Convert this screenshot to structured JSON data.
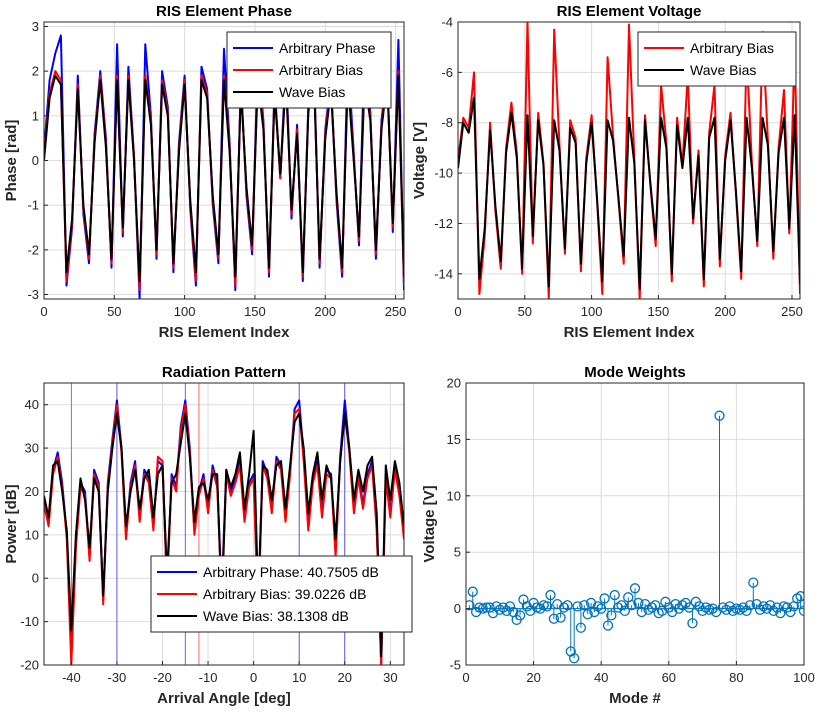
{
  "chart_data": [
    {
      "id": "phase",
      "type": "line",
      "title": "RIS Element Phase",
      "xlabel": "RIS Element Index",
      "ylabel": "Phase [rad]",
      "xlim": [
        0,
        256
      ],
      "ylim": [
        -3.1,
        3.1
      ],
      "xticks": [
        0,
        50,
        100,
        150,
        200,
        250
      ],
      "yticks": [
        -3,
        -2,
        -1,
        0,
        1,
        2,
        3
      ],
      "grid": true,
      "legend_position": "top-right",
      "x": [
        0,
        4,
        8,
        12,
        16,
        20,
        24,
        28,
        32,
        36,
        40,
        44,
        48,
        52,
        56,
        60,
        64,
        68,
        72,
        76,
        80,
        84,
        88,
        92,
        96,
        100,
        104,
        108,
        112,
        116,
        120,
        124,
        128,
        132,
        136,
        140,
        144,
        148,
        152,
        156,
        160,
        164,
        168,
        172,
        176,
        180,
        184,
        188,
        192,
        196,
        200,
        204,
        208,
        212,
        216,
        220,
        224,
        228,
        232,
        236,
        240,
        244,
        248,
        252,
        256
      ],
      "series": [
        {
          "name": "Arbitrary Phase",
          "color": "#0000ff",
          "values": [
            0.2,
            1.8,
            2.4,
            2.8,
            -2.8,
            -1.5,
            1.9,
            -1.2,
            -2.3,
            0.6,
            2.0,
            0.5,
            -2.4,
            2.6,
            -1.7,
            2.1,
            0.1,
            -3.1,
            2.6,
            1.0,
            -2.2,
            2.0,
            1.2,
            -2.5,
            0.4,
            1.9,
            -1.1,
            -2.8,
            2.1,
            1.6,
            -1.0,
            -2.3,
            2.5,
            0.4,
            -2.9,
            1.8,
            -0.8,
            -2.1,
            2.3,
            0.9,
            -2.6,
            1.7,
            -0.4,
            2.2,
            -1.3,
            0.8,
            -2.7,
            1.3,
            2.1,
            -2.4,
            0.7,
            1.8,
            -0.9,
            -2.6,
            2.4,
            0.3,
            -1.9,
            2.6,
            1.1,
            -2.2,
            0.9,
            2.0,
            -1.6,
            2.7,
            -2.9
          ]
        },
        {
          "name": "Arbitrary Bias",
          "color": "#ff0000",
          "values": [
            0.1,
            1.5,
            2.0,
            1.8,
            -2.7,
            -1.4,
            1.7,
            -1.1,
            -2.2,
            0.5,
            1.9,
            0.4,
            -2.3,
            1.9,
            -1.6,
            1.9,
            0.1,
            -2.9,
            1.9,
            0.9,
            -2.1,
            1.8,
            1.1,
            -2.4,
            0.3,
            1.8,
            -1.0,
            -2.7,
            1.9,
            1.5,
            -0.9,
            -2.2,
            1.9,
            0.3,
            -2.8,
            1.7,
            -0.7,
            -2.0,
            1.9,
            0.8,
            -2.5,
            1.6,
            -0.4,
            1.9,
            -1.2,
            0.7,
            -2.6,
            1.2,
            1.9,
            -2.3,
            0.6,
            1.7,
            -0.8,
            -2.5,
            1.9,
            0.2,
            -1.8,
            1.9,
            1.0,
            -2.1,
            0.8,
            1.9,
            -1.5,
            2.0,
            -2.8
          ]
        },
        {
          "name": "Wave Bias",
          "color": "#000000",
          "values": [
            0.0,
            1.4,
            1.9,
            1.7,
            -2.5,
            -1.3,
            1.6,
            -1.0,
            -2.1,
            0.4,
            1.8,
            0.3,
            -2.2,
            1.8,
            -1.5,
            1.8,
            0.0,
            -2.7,
            1.8,
            0.8,
            -2.0,
            1.7,
            1.0,
            -2.3,
            0.2,
            1.7,
            -0.9,
            -2.5,
            1.8,
            1.4,
            -0.8,
            -2.1,
            1.8,
            0.2,
            -2.6,
            1.6,
            -0.6,
            -1.9,
            1.8,
            0.7,
            -2.4,
            1.5,
            -0.3,
            1.8,
            -1.1,
            0.6,
            -2.5,
            1.1,
            1.8,
            -2.2,
            0.5,
            1.6,
            -0.7,
            -2.4,
            1.8,
            0.1,
            -1.7,
            1.8,
            0.9,
            -2.0,
            0.7,
            1.8,
            -1.4,
            1.9,
            -2.6
          ]
        }
      ]
    },
    {
      "id": "voltage",
      "type": "line",
      "title": "RIS Element Voltage",
      "xlabel": "RIS Element Index",
      "ylabel": "Voltage [V]",
      "xlim": [
        0,
        256
      ],
      "ylim": [
        -15,
        -4
      ],
      "xticks": [
        0,
        50,
        100,
        150,
        200,
        250
      ],
      "yticks": [
        -14,
        -12,
        -10,
        -8,
        -6,
        -4
      ],
      "grid": true,
      "legend_position": "top-right",
      "x": [
        0,
        4,
        8,
        12,
        16,
        20,
        24,
        28,
        32,
        36,
        40,
        44,
        48,
        52,
        56,
        60,
        64,
        68,
        72,
        76,
        80,
        84,
        88,
        92,
        96,
        100,
        104,
        108,
        112,
        116,
        120,
        124,
        128,
        132,
        136,
        140,
        144,
        148,
        152,
        156,
        160,
        164,
        168,
        172,
        176,
        180,
        184,
        188,
        192,
        196,
        200,
        204,
        208,
        212,
        216,
        220,
        224,
        228,
        232,
        236,
        240,
        244,
        248,
        252,
        256
      ],
      "series": [
        {
          "name": "Arbitrary Bias",
          "color": "#ff0000",
          "values": [
            -9.5,
            -7.8,
            -8.2,
            -6.0,
            -14.8,
            -12.5,
            -8.0,
            -11.5,
            -13.8,
            -9.0,
            -7.2,
            -9.2,
            -14.0,
            -4.0,
            -12.8,
            -7.6,
            -9.6,
            -15.0,
            -4.3,
            -8.9,
            -13.2,
            -7.9,
            -8.6,
            -13.9,
            -9.4,
            -7.7,
            -11.0,
            -14.8,
            -5.4,
            -8.5,
            -11.0,
            -13.6,
            -4.1,
            -9.4,
            -15.0,
            -7.7,
            -10.5,
            -12.9,
            -6.5,
            -8.8,
            -14.3,
            -7.8,
            -9.7,
            -6.1,
            -12.0,
            -9.1,
            -14.5,
            -8.4,
            -6.5,
            -13.7,
            -9.3,
            -7.6,
            -10.8,
            -14.2,
            -5.2,
            -9.6,
            -12.9,
            -4.4,
            -8.7,
            -13.4,
            -9.0,
            -6.7,
            -12.4,
            -5.1,
            -14.8
          ]
        },
        {
          "name": "Wave Bias",
          "color": "#000000",
          "values": [
            -9.8,
            -8.0,
            -8.4,
            -7.0,
            -14.2,
            -12.2,
            -8.3,
            -11.3,
            -13.5,
            -9.2,
            -7.6,
            -9.4,
            -13.8,
            -7.7,
            -12.5,
            -7.9,
            -9.7,
            -14.5,
            -7.9,
            -9.1,
            -13.0,
            -8.2,
            -8.8,
            -13.6,
            -9.6,
            -8.0,
            -10.9,
            -14.3,
            -7.9,
            -8.7,
            -10.9,
            -13.3,
            -7.8,
            -9.6,
            -14.6,
            -7.9,
            -10.4,
            -12.6,
            -7.8,
            -9.0,
            -14.0,
            -8.1,
            -9.8,
            -7.8,
            -11.8,
            -9.3,
            -14.2,
            -8.6,
            -7.8,
            -13.4,
            -9.5,
            -7.9,
            -10.7,
            -13.9,
            -7.8,
            -9.8,
            -12.7,
            -7.8,
            -8.9,
            -13.1,
            -9.2,
            -7.8,
            -12.2,
            -7.7,
            -14.4
          ]
        }
      ]
    },
    {
      "id": "radiation",
      "type": "line",
      "title": "Radiation Pattern",
      "xlabel": "Arrival Angle [deg]",
      "ylabel": "Power [dB]",
      "xlim": [
        -46,
        33
      ],
      "ylim": [
        -20,
        45
      ],
      "xticks": [
        -40,
        -30,
        -20,
        -10,
        0,
        10,
        20,
        30
      ],
      "yticks": [
        -20,
        -10,
        0,
        10,
        20,
        30,
        40
      ],
      "grid": true,
      "legend_position": "bottom-right",
      "vlines": [
        {
          "x": -40,
          "color": "#ff0000"
        },
        {
          "x": -30,
          "color": "#0000ff"
        },
        {
          "x": -15,
          "color": "#0000ff"
        },
        {
          "x": -12,
          "color": "#ff0000"
        },
        {
          "x": 10,
          "color": "#0000ff"
        },
        {
          "x": 20,
          "color": "#0000ff"
        }
      ],
      "x": [
        -46,
        -45,
        -44,
        -43,
        -42,
        -41,
        -40,
        -39,
        -38,
        -37,
        -36,
        -35,
        -34,
        -33,
        -32,
        -31,
        -30,
        -29,
        -28,
        -27,
        -26,
        -25,
        -24,
        -23,
        -22,
        -21,
        -20,
        -19,
        -18,
        -17,
        -16,
        -15,
        -14,
        -13,
        -12,
        -11,
        -10,
        -9,
        -8,
        -7,
        -6,
        -5,
        -4,
        -3,
        -2,
        -1,
        0,
        1,
        2,
        3,
        4,
        5,
        6,
        7,
        8,
        9,
        10,
        11,
        12,
        13,
        14,
        15,
        16,
        17,
        18,
        19,
        20,
        21,
        22,
        23,
        24,
        25,
        26,
        27,
        28,
        29,
        30,
        31,
        32,
        33
      ],
      "series": [
        {
          "name": "Arbitrary Phase: 40.7505 dB",
          "color": "#0000ff",
          "values": [
            18,
            13,
            25,
            29,
            22,
            10,
            -15,
            8,
            22,
            20,
            5,
            25,
            22,
            -5,
            22,
            32,
            41,
            30,
            10,
            22,
            27,
            14,
            25,
            23,
            12,
            27,
            26,
            -2,
            24,
            21,
            35,
            41,
            30,
            11,
            20,
            24,
            16,
            26,
            22,
            -3,
            25,
            20,
            23,
            27,
            14,
            22,
            24,
            -8,
            27,
            24,
            16,
            28,
            26,
            14,
            25,
            39,
            41,
            28,
            12,
            23,
            27,
            15,
            25,
            24,
            6,
            28,
            41,
            30,
            16,
            24,
            17,
            24,
            27,
            12,
            -20,
            24,
            15,
            26,
            20,
            10
          ]
        },
        {
          "name": "Arbitrary Bias: 39.0226 dB",
          "color": "#ff0000",
          "values": [
            17,
            12,
            24,
            28,
            21,
            9,
            -20,
            7,
            21,
            19,
            4,
            24,
            21,
            -6,
            21,
            31,
            40,
            29,
            9,
            21,
            26,
            13,
            24,
            22,
            11,
            28,
            27,
            -3,
            23,
            20,
            34,
            40,
            29,
            10,
            19,
            23,
            15,
            25,
            21,
            -4,
            24,
            19,
            22,
            26,
            13,
            21,
            23,
            -9,
            26,
            23,
            15,
            27,
            25,
            13,
            24,
            38,
            39,
            27,
            11,
            22,
            26,
            14,
            24,
            23,
            5,
            27,
            38,
            29,
            15,
            23,
            16,
            23,
            26,
            11,
            -20,
            23,
            14,
            25,
            19,
            9
          ]
        },
        {
          "name": "Wave Bias: 38.1308 dB",
          "color": "#000000",
          "values": [
            19,
            14,
            26,
            27,
            20,
            11,
            -12,
            10,
            23,
            18,
            7,
            23,
            20,
            -4,
            20,
            30,
            38,
            30,
            12,
            20,
            25,
            16,
            23,
            25,
            14,
            24,
            26,
            1,
            22,
            24,
            31,
            38,
            28,
            13,
            21,
            22,
            18,
            24,
            24,
            -7,
            25,
            21,
            24,
            29,
            16,
            24,
            34,
            -5,
            26,
            25,
            18,
            26,
            27,
            16,
            26,
            36,
            38,
            30,
            15,
            24,
            29,
            18,
            26,
            23,
            9,
            27,
            38,
            30,
            18,
            25,
            20,
            26,
            28,
            15,
            -18,
            26,
            18,
            27,
            22,
            12
          ]
        }
      ]
    },
    {
      "id": "modes",
      "type": "stem",
      "title": "Mode Weights",
      "xlabel": "Mode #",
      "ylabel": "Voltage [V]",
      "xlim": [
        0,
        100
      ],
      "ylim": [
        -5,
        20
      ],
      "xticks": [
        0,
        20,
        40,
        60,
        80,
        100
      ],
      "yticks": [
        -5,
        0,
        5,
        10,
        15,
        20
      ],
      "grid": true,
      "color": "#0072bd",
      "x": [
        1,
        2,
        3,
        4,
        5,
        6,
        7,
        8,
        9,
        10,
        11,
        12,
        13,
        14,
        15,
        16,
        17,
        18,
        19,
        20,
        21,
        22,
        23,
        24,
        25,
        26,
        27,
        28,
        29,
        30,
        31,
        32,
        33,
        34,
        35,
        36,
        37,
        38,
        39,
        40,
        41,
        42,
        43,
        44,
        45,
        46,
        47,
        48,
        49,
        50,
        51,
        52,
        53,
        54,
        55,
        56,
        57,
        58,
        59,
        60,
        61,
        62,
        63,
        64,
        65,
        66,
        67,
        68,
        69,
        70,
        71,
        72,
        73,
        74,
        75,
        76,
        77,
        78,
        79,
        80,
        81,
        82,
        83,
        84,
        85,
        86,
        87,
        88,
        89,
        90,
        91,
        92,
        93,
        94,
        95,
        96,
        97,
        98,
        99,
        100
      ],
      "values": [
        0.3,
        1.5,
        -0.3,
        0.1,
        0.0,
        0.1,
        0.1,
        -0.4,
        0.2,
        -0.1,
        0.1,
        -0.2,
        0.2,
        -0.3,
        -1.0,
        -0.6,
        0.8,
        0.2,
        -0.2,
        0.5,
        0.1,
        0.0,
        0.3,
        0.2,
        1.2,
        -0.9,
        0.4,
        -0.8,
        0.1,
        0.3,
        -3.8,
        -4.4,
        0.2,
        -1.7,
        0.3,
        -0.5,
        0.5,
        -0.3,
        0.2,
        0.0,
        0.9,
        -1.5,
        -0.6,
        1.2,
        0.1,
        0.3,
        -0.2,
        1.0,
        0.3,
        1.8,
        0.5,
        -0.3,
        0.4,
        -0.1,
        0.1,
        0.3,
        -0.4,
        -0.2,
        0.6,
        0.1,
        -0.3,
        0.4,
        0.0,
        0.3,
        0.5,
        0.1,
        -1.3,
        0.6,
        0.2,
        -0.2,
        0.1,
        -0.1,
        0.0,
        -0.3,
        17.1,
        0.1,
        -0.1,
        0.2,
        -0.2,
        0.0,
        -0.1,
        0.1,
        -0.2,
        0.3,
        2.3,
        0.4,
        -0.1,
        0.2,
        0.0,
        0.3,
        -0.2,
        0.1,
        -0.4,
        0.2,
        0.1,
        -0.3,
        0.2,
        0.9,
        1.1,
        -0.2
      ]
    }
  ]
}
